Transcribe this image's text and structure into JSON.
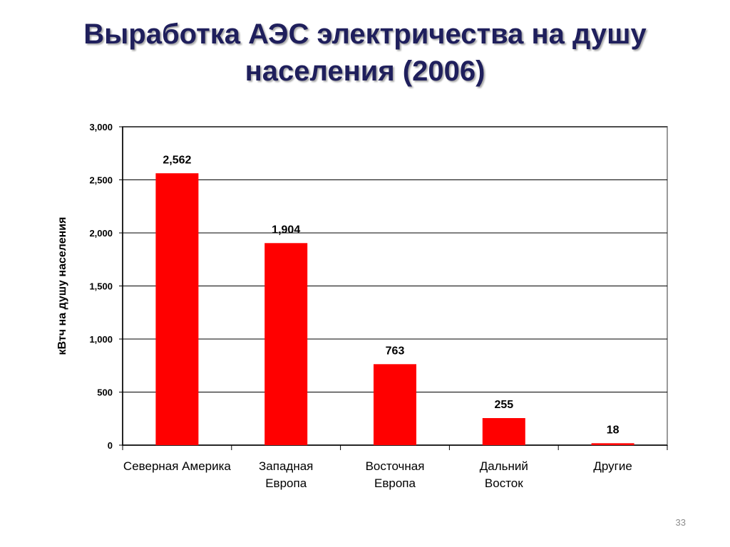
{
  "slide": {
    "title_line1": "Выработка АЭС электричества на душу",
    "title_line2": "населения (2006)",
    "page_number": "33"
  },
  "chart_data": {
    "type": "bar",
    "categories": [
      [
        "Северная Америка"
      ],
      [
        "Западная",
        "Европа"
      ],
      [
        "Восточная",
        "Европа"
      ],
      [
        "Дальний",
        "Восток"
      ],
      [
        "Другие"
      ]
    ],
    "values": [
      2562,
      1904,
      763,
      255,
      18
    ],
    "data_labels": [
      "2,562",
      "1,904",
      "763",
      "255",
      "18"
    ],
    "ylabel": "кВтч на душу населения",
    "ylim": [
      0,
      3000
    ],
    "yticks": [
      0,
      500,
      1000,
      1500,
      2000,
      2500,
      3000
    ],
    "ytick_labels": [
      "0",
      "500",
      "1,000",
      "1,500",
      "2,000",
      "2,500",
      "3,000"
    ],
    "grid": true,
    "bar_color": "#ff0000",
    "grid_color": "#000000"
  }
}
